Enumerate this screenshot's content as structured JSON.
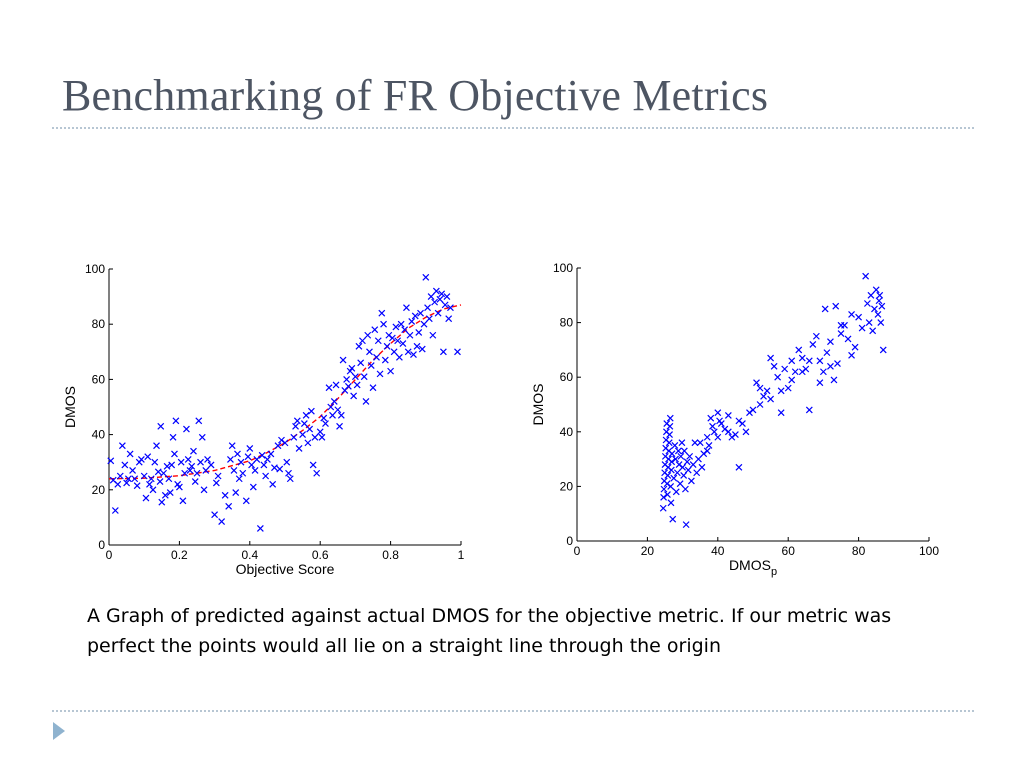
{
  "slide": {
    "title": "Benchmarking of FR Objective Metrics",
    "caption": "A Graph of predicted against actual DMOS for the objective metric. If our metric was perfect the points would all lie on a straight line through the origin",
    "nav_icon": "triangle-right-icon"
  },
  "colors": {
    "title": "#4d5563",
    "rule": "#b7c6d3",
    "marker": "#0000ff",
    "fit_line": "#ff0000",
    "nav_icon": "#8fb3cf"
  },
  "chart_data": [
    {
      "type": "scatter",
      "title": "",
      "xlabel": "Objective Score",
      "ylabel": "DMOS",
      "xlim": [
        0,
        1
      ],
      "ylim": [
        0,
        100
      ],
      "xticks": [
        "0",
        "0.2",
        "0.4",
        "0.6",
        "0.8",
        "1"
      ],
      "yticks": [
        "0",
        "20",
        "40",
        "60",
        "80",
        "100"
      ],
      "marker": "x",
      "grid": false,
      "points": [
        [
          0.005,
          30.5
        ],
        [
          0.012,
          23.5
        ],
        [
          0.018,
          12.5
        ],
        [
          0.025,
          22
        ],
        [
          0.032,
          25
        ],
        [
          0.038,
          36
        ],
        [
          0.045,
          29
        ],
        [
          0.05,
          22.5
        ],
        [
          0.055,
          24
        ],
        [
          0.06,
          33
        ],
        [
          0.067,
          27
        ],
        [
          0.073,
          24
        ],
        [
          0.08,
          21.5
        ],
        [
          0.086,
          30
        ],
        [
          0.092,
          31
        ],
        [
          0.1,
          25
        ],
        [
          0.105,
          17
        ],
        [
          0.11,
          32
        ],
        [
          0.115,
          22
        ],
        [
          0.12,
          24
        ],
        [
          0.125,
          20
        ],
        [
          0.13,
          30
        ],
        [
          0.135,
          36
        ],
        [
          0.14,
          26.5
        ],
        [
          0.145,
          23
        ],
        [
          0.147,
          43
        ],
        [
          0.15,
          15.5
        ],
        [
          0.155,
          26
        ],
        [
          0.16,
          18
        ],
        [
          0.165,
          28.5
        ],
        [
          0.17,
          24
        ],
        [
          0.174,
          19
        ],
        [
          0.178,
          29
        ],
        [
          0.182,
          39
        ],
        [
          0.186,
          33
        ],
        [
          0.19,
          45
        ],
        [
          0.195,
          22
        ],
        [
          0.2,
          21
        ],
        [
          0.205,
          30
        ],
        [
          0.21,
          16
        ],
        [
          0.215,
          26
        ],
        [
          0.22,
          42
        ],
        [
          0.225,
          31
        ],
        [
          0.23,
          27
        ],
        [
          0.235,
          28.5
        ],
        [
          0.24,
          34
        ],
        [
          0.245,
          23
        ],
        [
          0.25,
          26
        ],
        [
          0.255,
          45
        ],
        [
          0.26,
          30
        ],
        [
          0.265,
          39
        ],
        [
          0.27,
          20
        ],
        [
          0.275,
          27
        ],
        [
          0.28,
          31
        ],
        [
          0.29,
          29
        ],
        [
          0.3,
          11
        ],
        [
          0.305,
          22.5
        ],
        [
          0.31,
          25
        ],
        [
          0.32,
          8.5
        ],
        [
          0.33,
          18
        ],
        [
          0.34,
          14
        ],
        [
          0.345,
          31
        ],
        [
          0.35,
          36
        ],
        [
          0.355,
          27
        ],
        [
          0.36,
          19
        ],
        [
          0.365,
          33
        ],
        [
          0.37,
          24
        ],
        [
          0.375,
          30
        ],
        [
          0.38,
          26
        ],
        [
          0.39,
          16
        ],
        [
          0.395,
          32
        ],
        [
          0.4,
          35
        ],
        [
          0.405,
          29
        ],
        [
          0.41,
          21
        ],
        [
          0.415,
          27
        ],
        [
          0.42,
          31
        ],
        [
          0.43,
          6
        ],
        [
          0.435,
          32.5
        ],
        [
          0.44,
          29
        ],
        [
          0.445,
          25
        ],
        [
          0.45,
          31
        ],
        [
          0.46,
          33
        ],
        [
          0.465,
          22
        ],
        [
          0.47,
          28
        ],
        [
          0.48,
          36
        ],
        [
          0.485,
          27.5
        ],
        [
          0.49,
          38
        ],
        [
          0.5,
          37
        ],
        [
          0.505,
          30
        ],
        [
          0.51,
          26
        ],
        [
          0.515,
          24
        ],
        [
          0.525,
          39
        ],
        [
          0.53,
          43
        ],
        [
          0.535,
          45
        ],
        [
          0.54,
          35
        ],
        [
          0.55,
          40
        ],
        [
          0.555,
          44
        ],
        [
          0.56,
          47
        ],
        [
          0.565,
          37
        ],
        [
          0.57,
          42
        ],
        [
          0.575,
          48.5
        ],
        [
          0.58,
          29
        ],
        [
          0.585,
          39
        ],
        [
          0.59,
          26
        ],
        [
          0.6,
          41
        ],
        [
          0.605,
          39
        ],
        [
          0.61,
          46
        ],
        [
          0.615,
          44
        ],
        [
          0.625,
          57
        ],
        [
          0.63,
          50
        ],
        [
          0.635,
          47
        ],
        [
          0.64,
          52
        ],
        [
          0.645,
          58
        ],
        [
          0.65,
          49
        ],
        [
          0.655,
          43
        ],
        [
          0.66,
          47
        ],
        [
          0.665,
          67
        ],
        [
          0.67,
          56
        ],
        [
          0.675,
          60
        ],
        [
          0.68,
          57.5
        ],
        [
          0.685,
          63
        ],
        [
          0.69,
          64
        ],
        [
          0.695,
          54
        ],
        [
          0.7,
          61
        ],
        [
          0.705,
          58
        ],
        [
          0.71,
          72
        ],
        [
          0.715,
          66
        ],
        [
          0.72,
          74
        ],
        [
          0.725,
          61
        ],
        [
          0.73,
          52
        ],
        [
          0.735,
          76
        ],
        [
          0.74,
          70
        ],
        [
          0.745,
          65
        ],
        [
          0.75,
          57
        ],
        [
          0.755,
          78
        ],
        [
          0.76,
          68
        ],
        [
          0.765,
          74
        ],
        [
          0.77,
          62
        ],
        [
          0.775,
          84
        ],
        [
          0.78,
          80
        ],
        [
          0.785,
          67
        ],
        [
          0.79,
          72
        ],
        [
          0.795,
          76
        ],
        [
          0.8,
          63
        ],
        [
          0.805,
          75
        ],
        [
          0.81,
          70
        ],
        [
          0.815,
          79
        ],
        [
          0.82,
          74
        ],
        [
          0.825,
          68
        ],
        [
          0.83,
          80
        ],
        [
          0.835,
          73
        ],
        [
          0.84,
          78
        ],
        [
          0.845,
          86
        ],
        [
          0.85,
          70
        ],
        [
          0.855,
          76
        ],
        [
          0.86,
          81
        ],
        [
          0.865,
          69
        ],
        [
          0.87,
          83
        ],
        [
          0.875,
          72
        ],
        [
          0.88,
          77
        ],
        [
          0.885,
          84
        ],
        [
          0.89,
          71
        ],
        [
          0.895,
          80
        ],
        [
          0.9,
          97
        ],
        [
          0.905,
          86
        ],
        [
          0.91,
          82
        ],
        [
          0.915,
          90
        ],
        [
          0.92,
          76
        ],
        [
          0.925,
          88
        ],
        [
          0.93,
          92
        ],
        [
          0.935,
          84
        ],
        [
          0.94,
          89
        ],
        [
          0.945,
          91
        ],
        [
          0.95,
          70
        ],
        [
          0.955,
          87
        ],
        [
          0.96,
          90
        ],
        [
          0.965,
          82
        ],
        [
          0.97,
          86
        ],
        [
          0.99,
          70
        ]
      ],
      "fit_line": {
        "style": "dashed",
        "points": [
          [
            0,
            24
          ],
          [
            0.1,
            24.2
          ],
          [
            0.2,
            25.1
          ],
          [
            0.3,
            27
          ],
          [
            0.4,
            30.5
          ],
          [
            0.45,
            33.5
          ],
          [
            0.5,
            37
          ],
          [
            0.55,
            41.5
          ],
          [
            0.6,
            46.5
          ],
          [
            0.65,
            53
          ],
          [
            0.7,
            60
          ],
          [
            0.75,
            67
          ],
          [
            0.8,
            73
          ],
          [
            0.85,
            78.5
          ],
          [
            0.9,
            82.5
          ],
          [
            0.95,
            85.5
          ],
          [
            1,
            87
          ]
        ]
      }
    },
    {
      "type": "scatter",
      "title": "",
      "xlabel": "DMOS",
      "xlabel_subscript": "p",
      "ylabel": "DMOS",
      "xlim": [
        0,
        100
      ],
      "ylim": [
        0,
        100
      ],
      "xticks": [
        "0",
        "20",
        "40",
        "60",
        "80",
        "100"
      ],
      "yticks": [
        "0",
        "20",
        "40",
        "60",
        "80",
        "100"
      ],
      "marker": "x",
      "grid": false,
      "points": [
        [
          24.5,
          12
        ],
        [
          24.6,
          16
        ],
        [
          24.7,
          19
        ],
        [
          24.8,
          22
        ],
        [
          24.9,
          25
        ],
        [
          25,
          28
        ],
        [
          25.1,
          31
        ],
        [
          25.2,
          34
        ],
        [
          25.3,
          37
        ],
        [
          25.4,
          40
        ],
        [
          25.5,
          43
        ],
        [
          25.6,
          21
        ],
        [
          25.7,
          17
        ],
        [
          25.8,
          24
        ],
        [
          25.9,
          27
        ],
        [
          26,
          30
        ],
        [
          26.1,
          33
        ],
        [
          26.2,
          36
        ],
        [
          26.3,
          39
        ],
        [
          26.4,
          42
        ],
        [
          26.5,
          45
        ],
        [
          26.6,
          20
        ],
        [
          26.7,
          14
        ],
        [
          26.8,
          26
        ],
        [
          26.9,
          29
        ],
        [
          27,
          32
        ],
        [
          27.2,
          8
        ],
        [
          27.5,
          23
        ],
        [
          27.8,
          35
        ],
        [
          28,
          30
        ],
        [
          28.2,
          18
        ],
        [
          28.5,
          25
        ],
        [
          28.8,
          33
        ],
        [
          29,
          28
        ],
        [
          29.3,
          21
        ],
        [
          29.5,
          31
        ],
        [
          29.8,
          36
        ],
        [
          30,
          27
        ],
        [
          30.3,
          24
        ],
        [
          30.5,
          33
        ],
        [
          30.8,
          19
        ],
        [
          31,
          6
        ],
        [
          31.3,
          29
        ],
        [
          31.6,
          26
        ],
        [
          32,
          31
        ],
        [
          32.5,
          22
        ],
        [
          33,
          28
        ],
        [
          33.5,
          36
        ],
        [
          34,
          25
        ],
        [
          34.5,
          30
        ],
        [
          35,
          36
        ],
        [
          35.5,
          27
        ],
        [
          36,
          32
        ],
        [
          37,
          38
        ],
        [
          37.5,
          35
        ],
        [
          38,
          45
        ],
        [
          38.5,
          42
        ],
        [
          39,
          40
        ],
        [
          40,
          47
        ],
        [
          40.5,
          44
        ],
        [
          41,
          43
        ],
        [
          42,
          41
        ],
        [
          43,
          46
        ],
        [
          44,
          38
        ],
        [
          45,
          39
        ],
        [
          46,
          27
        ],
        [
          47,
          43
        ],
        [
          48,
          40
        ],
        [
          50,
          48
        ],
        [
          51,
          58
        ],
        [
          52,
          50
        ],
        [
          53,
          53
        ],
        [
          54,
          55
        ],
        [
          55,
          67
        ],
        [
          56,
          64
        ],
        [
          57,
          60
        ],
        [
          58,
          47
        ],
        [
          59,
          63
        ],
        [
          60,
          56
        ],
        [
          61,
          66
        ],
        [
          62,
          62
        ],
        [
          63,
          70
        ],
        [
          64,
          67
        ],
        [
          65,
          63
        ],
        [
          66,
          48
        ],
        [
          67,
          72
        ],
        [
          68,
          75
        ],
        [
          69,
          66
        ],
        [
          70,
          62
        ],
        [
          70.5,
          85
        ],
        [
          71,
          69
        ],
        [
          72,
          73
        ],
        [
          73,
          59
        ],
        [
          73.5,
          86
        ],
        [
          74,
          65
        ],
        [
          75,
          76
        ],
        [
          76,
          79
        ],
        [
          77,
          74
        ],
        [
          78,
          68
        ],
        [
          79,
          71
        ],
        [
          80,
          82
        ],
        [
          81,
          78
        ],
        [
          82,
          97
        ],
        [
          82.5,
          87
        ],
        [
          83,
          80
        ],
        [
          83.5,
          90
        ],
        [
          84,
          77
        ],
        [
          84.5,
          85
        ],
        [
          85,
          92
        ],
        [
          85.5,
          83
        ],
        [
          85.8,
          88
        ],
        [
          86,
          90
        ],
        [
          86.3,
          80
        ],
        [
          86.6,
          86
        ],
        [
          87,
          70
        ],
        [
          78,
          83
        ],
        [
          75,
          79
        ],
        [
          72,
          64
        ],
        [
          69,
          58
        ],
        [
          66,
          66
        ],
        [
          64,
          62
        ],
        [
          61,
          59
        ],
        [
          58,
          55
        ],
        [
          55,
          52
        ],
        [
          52,
          56
        ],
        [
          49,
          47
        ],
        [
          46,
          44
        ],
        [
          43,
          40
        ],
        [
          40,
          38
        ],
        [
          37,
          33
        ]
      ]
    }
  ]
}
